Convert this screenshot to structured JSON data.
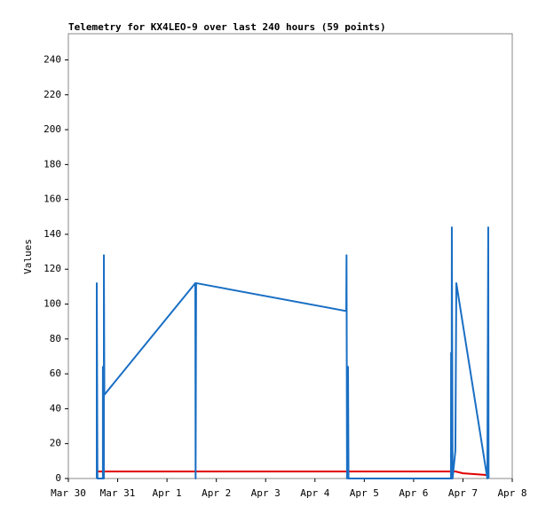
{
  "chart_data": {
    "type": "line",
    "title": "Telemetry for KX4LEO-9 over last 240 hours (59 points)",
    "y_label": "Values",
    "xlim": [
      0,
      9
    ],
    "xticks": [
      {
        "value": 0,
        "label": "Mar 30"
      },
      {
        "value": 1,
        "label": "Mar 31"
      },
      {
        "value": 2,
        "label": "Apr 1"
      },
      {
        "value": 3,
        "label": "Apr 2"
      },
      {
        "value": 4,
        "label": "Apr 3"
      },
      {
        "value": 5,
        "label": "Apr 4"
      },
      {
        "value": 6,
        "label": "Apr 5"
      },
      {
        "value": 7,
        "label": "Apr 6"
      },
      {
        "value": 8,
        "label": "Apr 7"
      },
      {
        "value": 9,
        "label": "Apr 8"
      }
    ],
    "ylim": [
      0,
      255
    ],
    "yticks": [
      0,
      20,
      40,
      60,
      80,
      100,
      120,
      140,
      160,
      180,
      200,
      220,
      240
    ],
    "grid": false,
    "series": [
      {
        "color": "#e00000",
        "x": [
          0.576,
          7.85,
          8.0,
          8.495
        ],
        "values": [
          4,
          4,
          3,
          2
        ]
      },
      {
        "color": "#1a6fc4",
        "x": [
          0.576,
          0.576,
          0.59,
          0.7,
          0.7,
          0.72,
          0.72,
          0.73,
          2.574,
          2.58,
          2.59,
          5.634,
          5.64,
          5.65,
          5.67,
          5.68,
          7.757,
          7.76,
          7.77,
          7.775,
          7.79,
          7.847,
          7.866,
          8.495,
          8.513,
          8.52
        ],
        "values": [
          0,
          112,
          0,
          0,
          64,
          0,
          128,
          48,
          112,
          0,
          112,
          96,
          128,
          0,
          64,
          0,
          0,
          72,
          0,
          144,
          0,
          16,
          112,
          0,
          144,
          0
        ]
      }
    ]
  }
}
